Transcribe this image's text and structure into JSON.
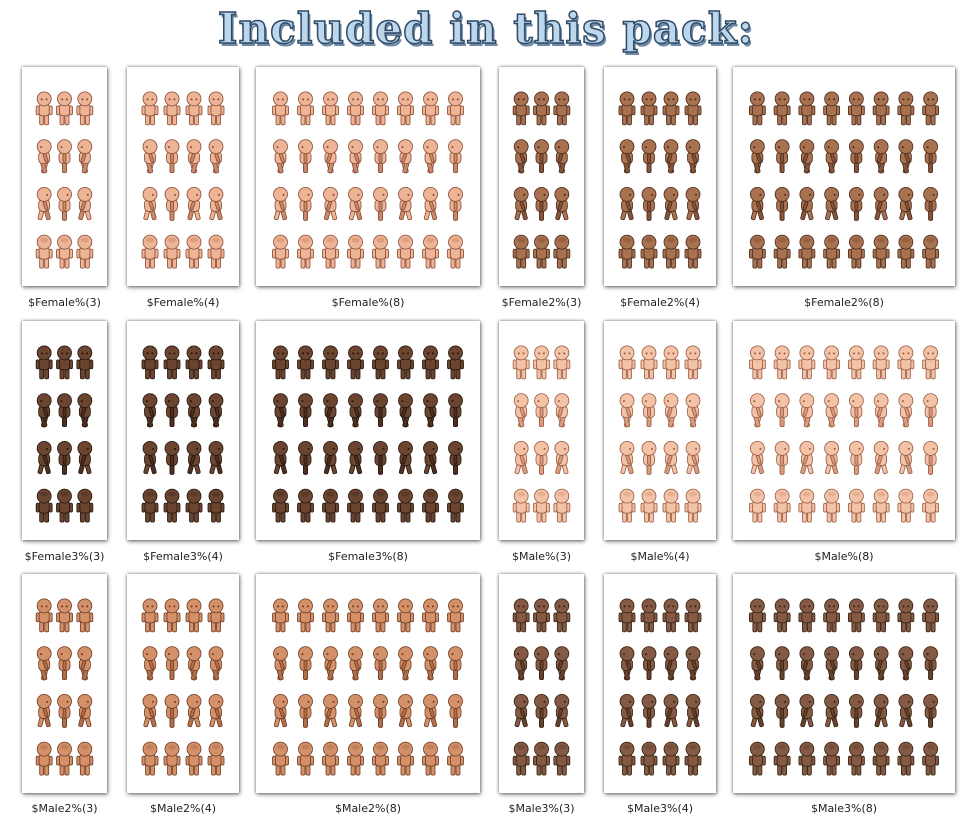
{
  "title": "Included in this pack:",
  "tones": {
    "t1": {
      "skin": "#edb496",
      "shade": "#c98a6c",
      "line": "#8a4a33"
    },
    "t2": {
      "skin": "#a8714f",
      "shade": "#85543a",
      "line": "#4a2a1a"
    },
    "t3": {
      "skin": "#6b4530",
      "shade": "#4d3020",
      "line": "#24150d"
    },
    "t4": {
      "skin": "#f3c3a8",
      "shade": "#d99d80",
      "line": "#9a5a40"
    },
    "t5": {
      "skin": "#d49068",
      "shade": "#b0704c",
      "line": "#6e3a22"
    },
    "t6": {
      "skin": "#855a44",
      "shade": "#66412f",
      "line": "#33200f"
    }
  },
  "sheets": [
    {
      "label": "$Female%(3)",
      "tone": "t1",
      "cols": 3
    },
    {
      "label": "$Female%(4)",
      "tone": "t1",
      "cols": 4
    },
    {
      "label": "$Female%(8)",
      "tone": "t1",
      "cols": 8
    },
    {
      "label": "$Female2%(3)",
      "tone": "t2",
      "cols": 3
    },
    {
      "label": "$Female2%(4)",
      "tone": "t2",
      "cols": 4
    },
    {
      "label": "$Female2%(8)",
      "tone": "t2",
      "cols": 8
    },
    {
      "label": "$Female3%(3)",
      "tone": "t3",
      "cols": 3
    },
    {
      "label": "$Female3%(4)",
      "tone": "t3",
      "cols": 4
    },
    {
      "label": "$Female3%(8)",
      "tone": "t3",
      "cols": 8
    },
    {
      "label": "$Male%(3)",
      "tone": "t4",
      "cols": 3
    },
    {
      "label": "$Male%(4)",
      "tone": "t4",
      "cols": 4
    },
    {
      "label": "$Male%(8)",
      "tone": "t4",
      "cols": 8
    },
    {
      "label": "$Male2%(3)",
      "tone": "t5",
      "cols": 3
    },
    {
      "label": "$Male2%(4)",
      "tone": "t5",
      "cols": 4
    },
    {
      "label": "$Male2%(8)",
      "tone": "t5",
      "cols": 8
    },
    {
      "label": "$Male3%(3)",
      "tone": "t6",
      "cols": 3
    },
    {
      "label": "$Male3%(4)",
      "tone": "t6",
      "cols": 4
    },
    {
      "label": "$Male3%(8)",
      "tone": "t6",
      "cols": 8
    }
  ]
}
